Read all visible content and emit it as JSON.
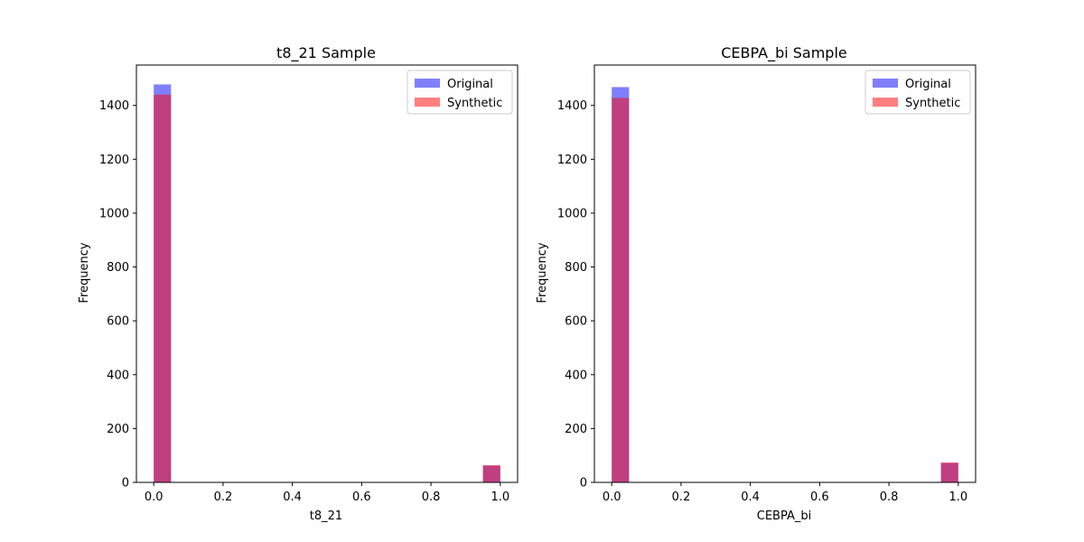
{
  "chart_data": [
    {
      "type": "bar",
      "subtype": "histogram",
      "title": "t8_21 Sample",
      "xlabel": "t8_21",
      "ylabel": "Frequency",
      "xlim": [
        -0.05,
        1.05
      ],
      "ylim": [
        0,
        1550
      ],
      "xticks": [
        "0.0",
        "0.2",
        "0.4",
        "0.6",
        "0.8",
        "1.0"
      ],
      "yticks": [
        "0",
        "200",
        "400",
        "600",
        "800",
        "1000",
        "1200",
        "1400"
      ],
      "bin_edges": [
        0.0,
        0.05,
        0.95,
        1.0
      ],
      "series": [
        {
          "name": "Original",
          "color": "#0000ff",
          "alpha": 0.5,
          "bins": [
            {
              "x0": 0.0,
              "x1": 0.05,
              "value": 1478
            },
            {
              "x0": 0.95,
              "x1": 1.0,
              "value": 62
            }
          ]
        },
        {
          "name": "Synthetic",
          "color": "#ff0000",
          "alpha": 0.5,
          "bins": [
            {
              "x0": 0.0,
              "x1": 0.05,
              "value": 1440
            },
            {
              "x0": 0.95,
              "x1": 1.0,
              "value": 64
            }
          ]
        }
      ],
      "legend": "top-right",
      "grid": false
    },
    {
      "type": "bar",
      "subtype": "histogram",
      "title": "CEBPA_bi Sample",
      "xlabel": "CEBPA_bi",
      "ylabel": "Frequency",
      "xlim": [
        -0.05,
        1.05
      ],
      "ylim": [
        0,
        1550
      ],
      "xticks": [
        "0.0",
        "0.2",
        "0.4",
        "0.6",
        "0.8",
        "1.0"
      ],
      "yticks": [
        "0",
        "200",
        "400",
        "600",
        "800",
        "1000",
        "1200",
        "1400"
      ],
      "series": [
        {
          "name": "Original",
          "color": "#0000ff",
          "alpha": 0.5,
          "bins": [
            {
              "x0": 0.0,
              "x1": 0.05,
              "value": 1468
            },
            {
              "x0": 0.95,
              "x1": 1.0,
              "value": 72
            }
          ]
        },
        {
          "name": "Synthetic",
          "color": "#ff0000",
          "alpha": 0.5,
          "bins": [
            {
              "x0": 0.0,
              "x1": 0.05,
              "value": 1428
            },
            {
              "x0": 0.95,
              "x1": 1.0,
              "value": 74
            }
          ]
        }
      ],
      "legend": "top-right",
      "grid": false
    }
  ]
}
